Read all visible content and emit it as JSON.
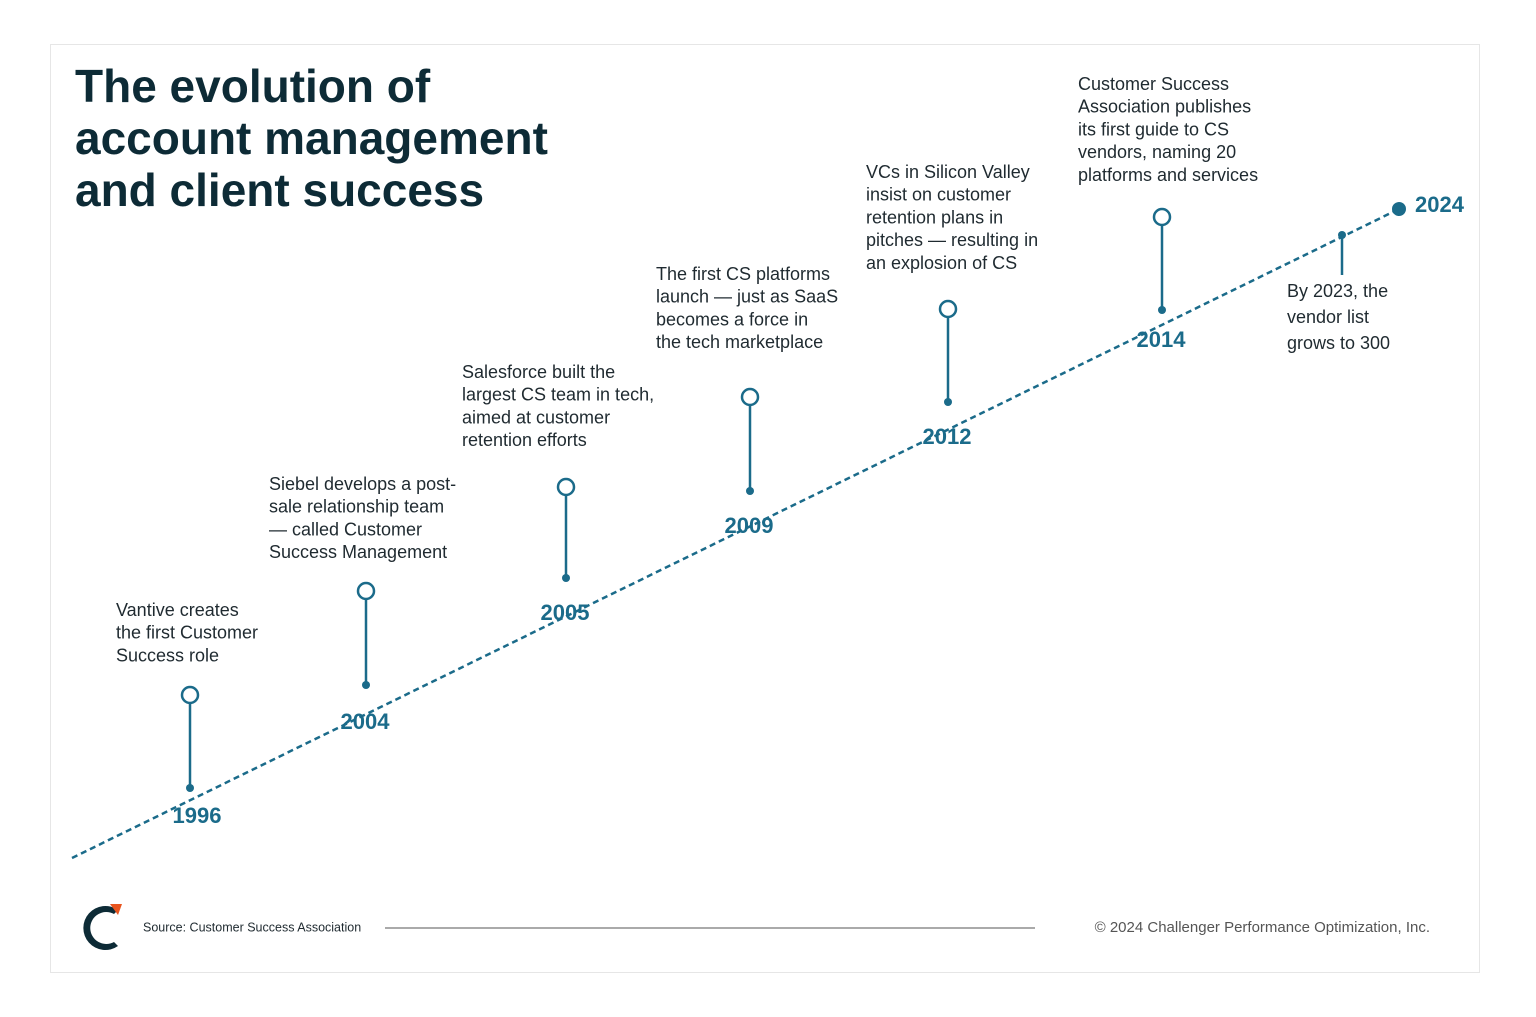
{
  "title": [
    "The evolution of",
    "account management",
    "and client success"
  ],
  "events": [
    {
      "year": "1996",
      "text": [
        "Vantive creates",
        "the first Customer",
        "Success role"
      ]
    },
    {
      "year": "2004",
      "text": [
        "Siebel develops a post-",
        "sale relationship team",
        "— called Customer",
        "Success Management"
      ]
    },
    {
      "year": "2005",
      "text": [
        "Salesforce built the",
        "largest CS team in tech,",
        "aimed at customer",
        "retention efforts"
      ]
    },
    {
      "year": "2009",
      "text": [
        "The first CS platforms",
        "launch — just as SaaS",
        "becomes a force in",
        "the tech marketplace"
      ]
    },
    {
      "year": "2012",
      "text": [
        "VCs in Silicon Valley",
        "insist on customer",
        "retention plans in",
        "pitches — resulting in",
        "an explosion of CS"
      ]
    },
    {
      "year": "2014",
      "text": [
        "Customer Success",
        "Association publishes",
        "its first guide to CS",
        "vendors, naming 20",
        "platforms and services"
      ]
    }
  ],
  "end": {
    "year": "2024",
    "note": [
      "By 2023, the",
      "vendor list",
      "grows to 300"
    ]
  },
  "footer": {
    "source": "Source: Customer Success Association",
    "copyright": "© 2024 Challenger Performance Optimization, Inc."
  }
}
